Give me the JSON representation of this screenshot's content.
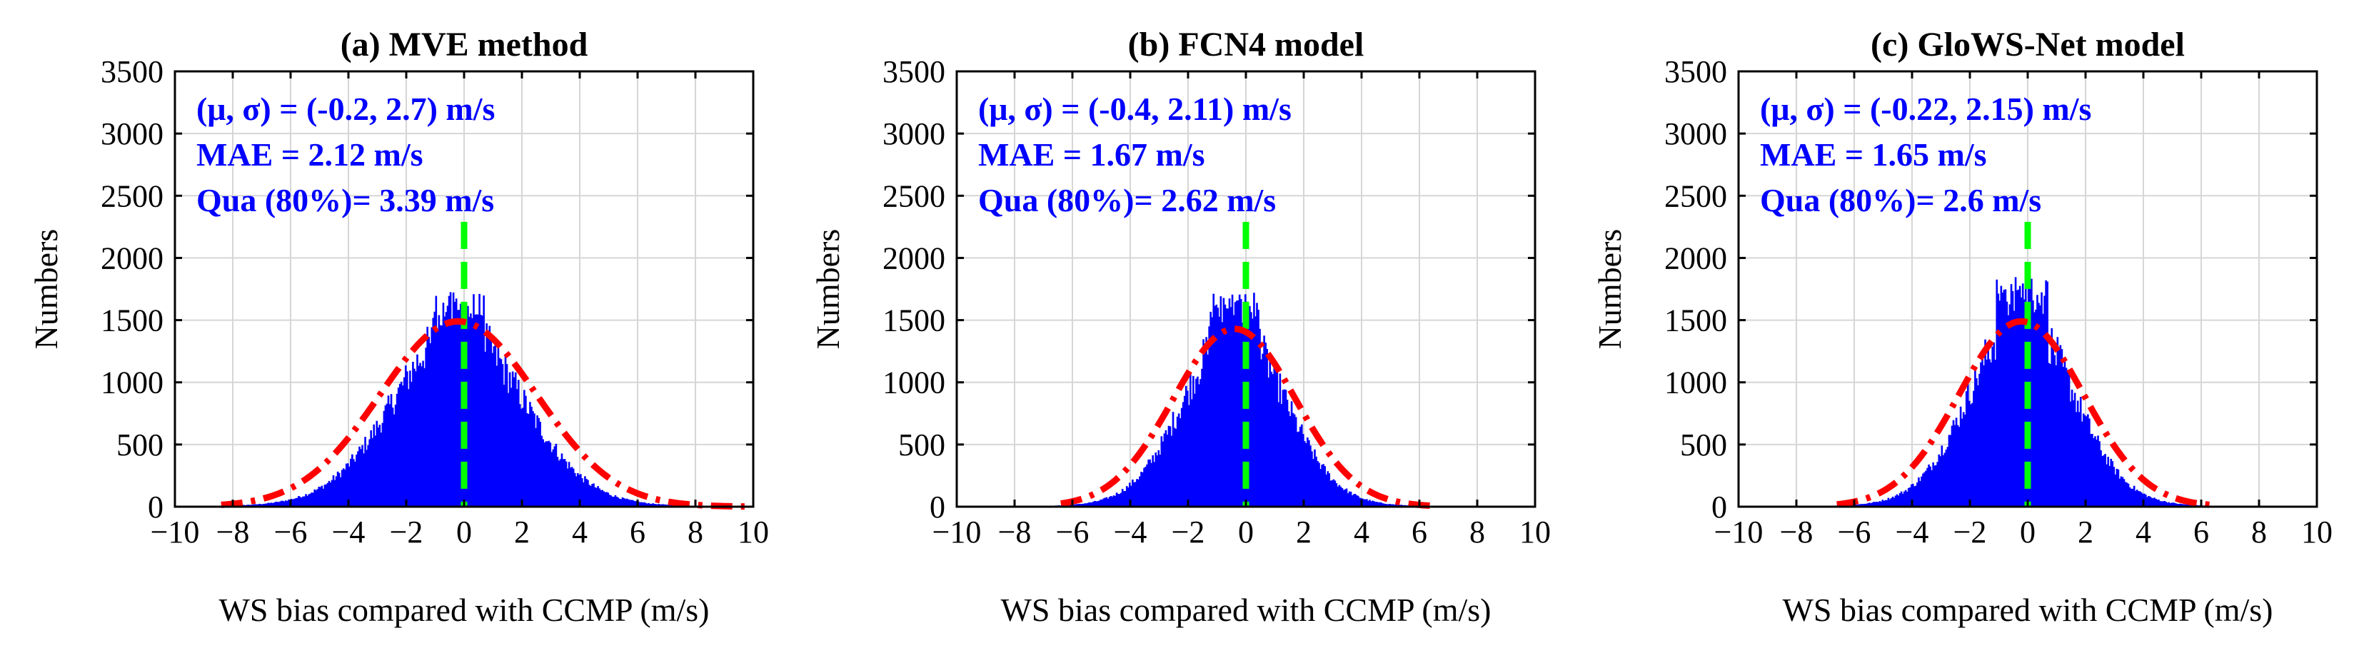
{
  "figure": {
    "panels": [
      {
        "title": "(a) MVE method",
        "stats": [
          "(μ, σ) = (-0.2, 2.7) m/s",
          "MAE = 2.12 m/s",
          "Qua (80%)= 3.39 m/s"
        ],
        "mu": -0.2,
        "sigma": 2.7,
        "peak": 1490,
        "hist_max": 1730,
        "range": [
          -8.6,
          9.8
        ]
      },
      {
        "title": "(b) FCN4 model",
        "stats": [
          "(μ, σ) = (-0.4, 2.11) m/s",
          "MAE = 1.67 m/s",
          "Qua (80%)= 2.62 m/s"
        ],
        "mu": -0.4,
        "sigma": 2.11,
        "peak": 1430,
        "hist_max": 1740,
        "range": [
          -6.6,
          6.6
        ]
      },
      {
        "title": "(c) GloWS-Net model",
        "stats": [
          "(μ, σ) = (-0.22, 2.15) m/s",
          "MAE = 1.65 m/s",
          "Qua (80%)= 2.6 m/s"
        ],
        "mu": -0.22,
        "sigma": 2.15,
        "peak": 1490,
        "hist_max": 1860,
        "range": [
          -6.8,
          6.6
        ]
      }
    ]
  },
  "chart_data": [
    {
      "type": "bar",
      "title": "(a) MVE method",
      "xlabel": "WS bias compared with CCMP (m/s)",
      "ylabel": "Numbers",
      "xlim": [
        -10,
        10
      ],
      "ylim": [
        0,
        3500
      ],
      "xticks": [
        "−10",
        "−8",
        "−6",
        "−4",
        "−2",
        "0",
        "2",
        "4",
        "6",
        "8",
        "10"
      ],
      "yticks": [
        "0",
        "500",
        "1000",
        "1500",
        "2000",
        "2500",
        "3000",
        "3500"
      ],
      "series": [
        {
          "name": "histogram",
          "peak": 1730,
          "color": "#0000ff"
        },
        {
          "name": "gaussian fit",
          "mu": -0.2,
          "sigma": 2.7,
          "peak": 1490,
          "color": "#ff0000"
        },
        {
          "name": "zero line",
          "x": 0,
          "color": "#00ff00"
        }
      ],
      "grid": true
    },
    {
      "type": "bar",
      "title": "(b) FCN4 model",
      "xlabel": "WS bias compared with CCMP (m/s)",
      "ylabel": "Numbers",
      "xlim": [
        -10,
        10
      ],
      "ylim": [
        0,
        3500
      ],
      "xticks": [
        "−10",
        "−8",
        "−6",
        "−4",
        "−2",
        "0",
        "2",
        "4",
        "6",
        "8",
        "10"
      ],
      "yticks": [
        "0",
        "500",
        "1000",
        "1500",
        "2000",
        "2500",
        "3000",
        "3500"
      ],
      "series": [
        {
          "name": "histogram",
          "peak": 1740,
          "color": "#0000ff"
        },
        {
          "name": "gaussian fit",
          "mu": -0.4,
          "sigma": 2.11,
          "peak": 1430,
          "color": "#ff0000"
        },
        {
          "name": "zero line",
          "x": 0,
          "color": "#00ff00"
        }
      ],
      "grid": true
    },
    {
      "type": "bar",
      "title": "(c) GloWS-Net model",
      "xlabel": "WS bias compared with CCMP (m/s)",
      "ylabel": "Numbers",
      "xlim": [
        -10,
        10
      ],
      "ylim": [
        0,
        3500
      ],
      "xticks": [
        "−10",
        "−8",
        "−6",
        "−4",
        "−2",
        "0",
        "2",
        "4",
        "6",
        "8",
        "10"
      ],
      "yticks": [
        "0",
        "500",
        "1000",
        "1500",
        "2000",
        "2500",
        "3000",
        "3500"
      ],
      "series": [
        {
          "name": "histogram",
          "peak": 1860,
          "color": "#0000ff"
        },
        {
          "name": "gaussian fit",
          "mu": -0.22,
          "sigma": 2.15,
          "peak": 1490,
          "color": "#ff0000"
        },
        {
          "name": "zero line",
          "x": 0,
          "color": "#00ff00"
        }
      ],
      "grid": true
    }
  ],
  "colors": {
    "histogram": "#0000ff",
    "fit": "#ff0000",
    "zero_line": "#00ff00",
    "stats_text": "#0000ff"
  }
}
